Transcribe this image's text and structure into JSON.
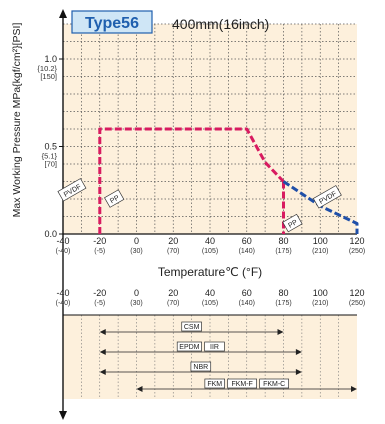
{
  "chart_data": {
    "type": "line",
    "title": "Type56",
    "subtitle": "400mm(16inch)",
    "xlabel": "Temperature℃ (°F)",
    "ylabel": "Max Working Pressure MPa{kgf/cm²}[PSI]",
    "xlim": [
      -40,
      120
    ],
    "ylim": [
      0,
      1.2
    ],
    "x_ticks": [
      {
        "c": "-40",
        "f": "(-40)",
        "v": -40
      },
      {
        "c": "-20",
        "f": "(-5)",
        "v": -20
      },
      {
        "c": "0",
        "f": "(30)",
        "v": 0
      },
      {
        "c": "20",
        "f": "(70)",
        "v": 20
      },
      {
        "c": "40",
        "f": "(105)",
        "v": 40
      },
      {
        "c": "60",
        "f": "(140)",
        "v": 60
      },
      {
        "c": "80",
        "f": "(175)",
        "v": 80
      },
      {
        "c": "100",
        "f": "(210)",
        "v": 100
      },
      {
        "c": "120",
        "f": "(250)",
        "v": 120
      }
    ],
    "y_ticks": [
      {
        "main": "1.0",
        "kgf": "{10.2}",
        "psi": "[150]",
        "v": 1.0
      },
      {
        "main": "0.5",
        "kgf": "{5.1}",
        "psi": "[70]",
        "v": 0.5
      },
      {
        "main": "0.0",
        "kgf": "",
        "psi": "",
        "v": 0.0
      }
    ],
    "series": [
      {
        "name": "PVDF",
        "color": "#d81b60",
        "style": "dashed",
        "x": [
          -20,
          -20,
          60,
          70,
          80
        ],
        "y": [
          0.0,
          0.6,
          0.6,
          0.41,
          0.3
        ]
      },
      {
        "name": "PP",
        "color": "#d81b60",
        "style": "dashed",
        "x": [
          80,
          80
        ],
        "y": [
          0.3,
          0.0
        ]
      },
      {
        "name": "PVDF",
        "color": "#1f4fa8",
        "style": "dashed",
        "x": [
          80,
          100,
          120,
          120
        ],
        "y": [
          0.3,
          0.16,
          0.06,
          0.0
        ]
      }
    ],
    "annotations": [
      {
        "text": "PVDF",
        "x": -35,
        "y": 0.25
      },
      {
        "text": "PP",
        "x": -12,
        "y": 0.2
      },
      {
        "text": "PP",
        "x": 85,
        "y": 0.06
      },
      {
        "text": "PVDF",
        "x": 104,
        "y": 0.21
      }
    ],
    "grid": true
  },
  "seal_chart": {
    "materials": [
      {
        "name": "CSM",
        "start": -20,
        "end": 80
      },
      {
        "name": "EPDM",
        "start": -20,
        "end": 90
      },
      {
        "name": "IIR",
        "start": -20,
        "end": 90
      },
      {
        "name": "NBR",
        "start": -20,
        "end": 90
      },
      {
        "name": "FKM",
        "start": 0,
        "end": 120
      },
      {
        "name": "FKM-F",
        "start": 0,
        "end": 120
      },
      {
        "name": "FKM-C",
        "start": 0,
        "end": 120
      }
    ],
    "rows": [
      {
        "labels": [
          "CSM"
        ],
        "start": -20,
        "end": 80
      },
      {
        "labels": [
          "EPDM",
          "IIR"
        ],
        "start": -20,
        "end": 90
      },
      {
        "labels": [
          "NBR"
        ],
        "start": -20,
        "end": 90
      },
      {
        "labels": [
          "FKM",
          "FKM-F",
          "FKM-C"
        ],
        "start": 0,
        "end": 120
      }
    ]
  },
  "colors": {
    "accent": "#1f5fae",
    "grid_bg": "#fdf0dc",
    "pink": "#d81b60",
    "blue": "#1f4fa8"
  }
}
